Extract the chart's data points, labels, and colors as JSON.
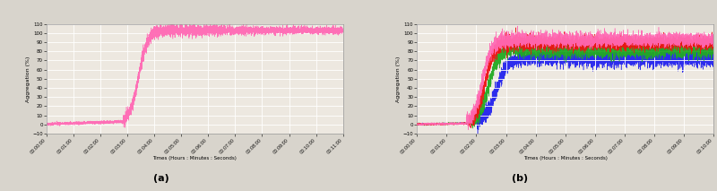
{
  "title_a": "(a)",
  "title_b": "(b)",
  "ylabel": "Aggregation (%)",
  "xlabel": "Times (Hours : Minutes : Seconds)",
  "ylim_a": [
    -10,
    110
  ],
  "ylim_b": [
    -10,
    110
  ],
  "yticks_a": [
    -10,
    0,
    10,
    20,
    30,
    40,
    50,
    60,
    70,
    80,
    90,
    100,
    110
  ],
  "yticks_b": [
    -10,
    0,
    10,
    20,
    30,
    40,
    50,
    60,
    70,
    80,
    90,
    100,
    110
  ],
  "xticks_a": [
    0,
    60,
    120,
    180,
    240,
    300,
    360,
    420,
    480,
    540,
    600,
    660
  ],
  "xtick_labels_a": [
    "00:00:00",
    "00:01:00",
    "00:02:00",
    "00:03:00",
    "00:04:00",
    "00:05:00",
    "00:06:00",
    "00:07:00",
    "00:08:00",
    "00:09:00",
    "00:10:00",
    "00:11:00"
  ],
  "xticks_b": [
    0,
    60,
    120,
    180,
    240,
    300,
    360,
    420,
    480,
    540,
    600
  ],
  "xtick_labels_b": [
    "00:00:00",
    "00:01:00",
    "00:02:00",
    "00:03:00",
    "00:04:00",
    "00:05:00",
    "00:06:00",
    "00:07:00",
    "00:08:00",
    "00:09:00",
    "00:10:00"
  ],
  "color_pink": "#FF69B4",
  "color_red": "#EE1111",
  "color_green": "#22AA22",
  "color_blue": "#2222EE",
  "bg_color": "#ede8e0",
  "grid_color": "#ffffff",
  "fig_bg": "#d8d4cc",
  "total_duration_a": 660,
  "total_duration_b": 600,
  "noise_a_pre": 0.8,
  "noise_a_rise": 3.5,
  "noise_a_post": 1.8,
  "noise_b_pre": 0.5,
  "noise_b_rise": 4.0,
  "noise_b_post_high": 3.5,
  "noise_b_post_low": 4.5,
  "rise_start_a": 170,
  "rise_mid_a": 200,
  "rise_end_a": 240,
  "plateau_a": 103,
  "rise_start_b_pink": 100,
  "rise_mid_b_pink": 130,
  "rise_end_b_pink": 165,
  "plateau_b_pink": 93,
  "rise_start_b_red": 105,
  "rise_mid_b_red": 135,
  "rise_end_b_red": 170,
  "plateau_b_red": 89,
  "rise_start_b_green": 110,
  "rise_mid_b_green": 145,
  "rise_end_b_green": 180,
  "plateau_b_green": 82,
  "rise_start_b_blue": 120,
  "rise_mid_b_blue": 160,
  "rise_end_b_blue": 200,
  "plateau_b_blue": 73
}
